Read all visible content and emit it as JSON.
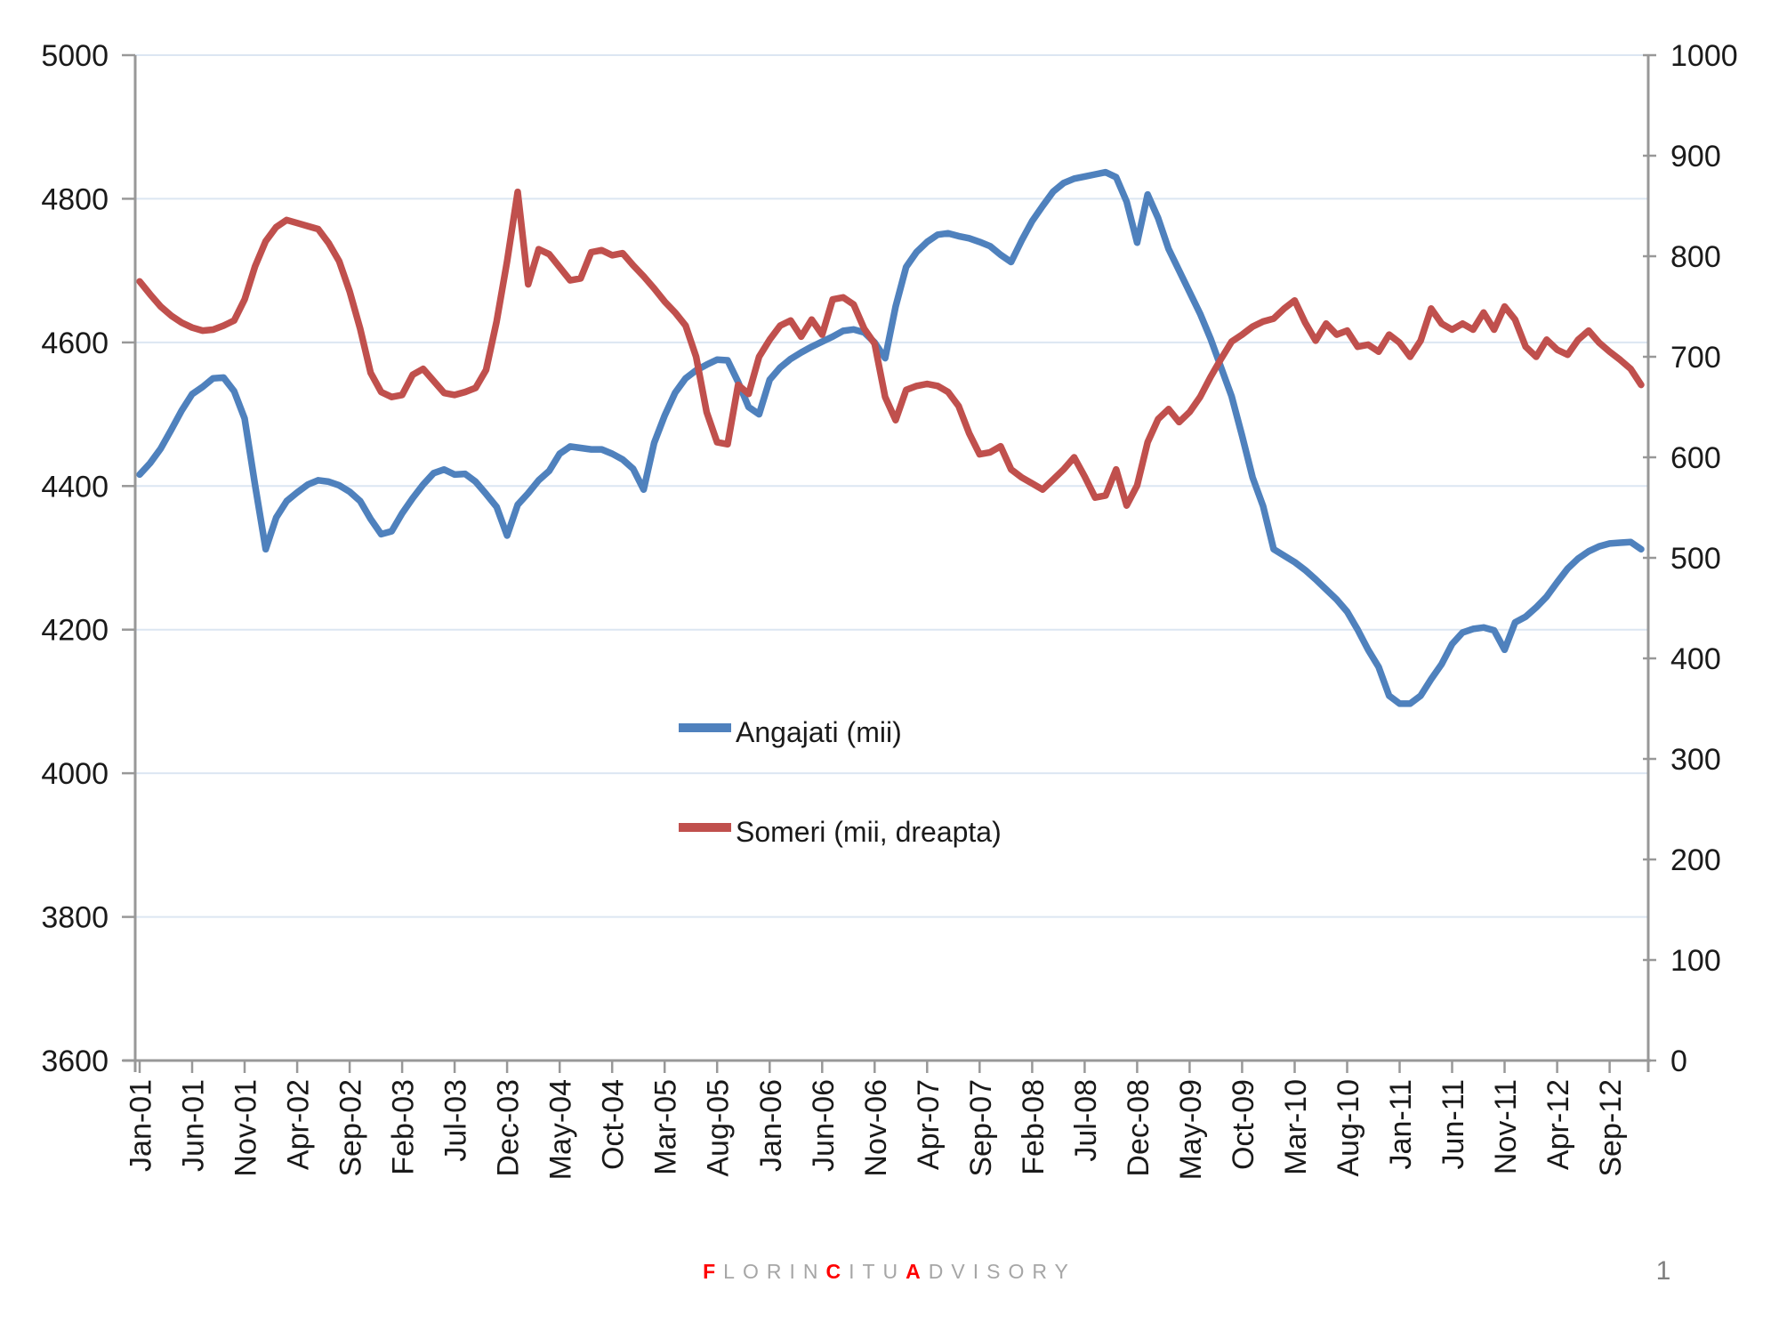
{
  "chart_data": {
    "type": "line",
    "title": "",
    "x_start": "Jan-01",
    "x_end": "Dec-12",
    "frequency": "monthly",
    "x_tick_labels": [
      "Jan-01",
      "Jun-01",
      "Nov-01",
      "Apr-02",
      "Sep-02",
      "Feb-03",
      "Jul-03",
      "Dec-03",
      "May-04",
      "Oct-04",
      "Mar-05",
      "Aug-05",
      "Jan-06",
      "Jun-06",
      "Nov-06",
      "Apr-07",
      "Sep-07",
      "Feb-08",
      "Jul-08",
      "Dec-08",
      "May-09",
      "Oct-09",
      "Mar-10",
      "Aug-10",
      "Jan-11",
      "Jun-11",
      "Nov-11",
      "Apr-12",
      "Sep-12"
    ],
    "x_tick_step_months": 5,
    "left_axis": {
      "min": 3600,
      "max": 5000,
      "step": 200,
      "tick_labels": [
        "3600",
        "3800",
        "4000",
        "4200",
        "4400",
        "4600",
        "4800",
        "5000"
      ]
    },
    "right_axis": {
      "min": 0,
      "max": 1000,
      "step": 100,
      "tick_labels": [
        "0",
        "100",
        "200",
        "300",
        "400",
        "500",
        "600",
        "700",
        "800",
        "900",
        "1000"
      ]
    },
    "grid": "horizontal-only",
    "legend_position": "center-inside",
    "colors": {
      "gridline": "#dce6f2",
      "axis": "#989898",
      "tick_text": "#1a1a1a"
    },
    "series": [
      {
        "name": "Angajati (mii)",
        "axis": "left",
        "color": "#4F81BD",
        "values": [
          4416,
          4432,
          4452,
          4478,
          4505,
          4528,
          4538,
          4550,
          4551,
          4532,
          4494,
          4401,
          4312,
          4356,
          4379,
          4391,
          4402,
          4408,
          4406,
          4401,
          4392,
          4379,
          4354,
          4333,
          4337,
          4362,
          4383,
          4402,
          4418,
          4423,
          4416,
          4417,
          4406,
          4389,
          4371,
          4331,
          4374,
          4390,
          4408,
          4421,
          4445,
          4455,
          4453,
          4451,
          4451,
          4445,
          4437,
          4424,
          4395,
          4460,
          4498,
          4530,
          4550,
          4561,
          4569,
          4576,
          4575,
          4545,
          4510,
          4500,
          4548,
          4565,
          4577,
          4586,
          4594,
          4601,
          4608,
          4616,
          4618,
          4614,
          4600,
          4578,
          4650,
          4705,
          4726,
          4740,
          4750,
          4752,
          4748,
          4745,
          4740,
          4734,
          4722,
          4712,
          4742,
          4769,
          4790,
          4810,
          4822,
          4828,
          4831,
          4834,
          4837,
          4830,
          4796,
          4739,
          4806,
          4773,
          4730,
          4700,
          4670,
          4640,
          4605,
          4565,
          4525,
          4470,
          4412,
          4372,
          4312,
          4303,
          4294,
          4283,
          4270,
          4256,
          4242,
          4225,
          4200,
          4172,
          4148,
          4108,
          4097,
          4097,
          4108,
          4131,
          4152,
          4180,
          4196,
          4201,
          4203,
          4199,
          4172,
          4210,
          4218,
          4231,
          4246,
          4266,
          4285,
          4299,
          4309,
          4316,
          4320,
          4321,
          4322,
          4312
        ]
      },
      {
        "name": "Someri (mii, dreapta)",
        "axis": "right",
        "color": "#C0504D",
        "values": [
          775,
          762,
          750,
          741,
          734,
          729,
          726,
          727,
          731,
          736,
          757,
          790,
          815,
          829,
          836,
          833,
          830,
          827,
          813,
          795,
          765,
          728,
          684,
          665,
          660,
          662,
          682,
          688,
          676,
          664,
          662,
          665,
          669,
          687,
          735,
          795,
          864,
          772,
          807,
          802,
          789,
          776,
          778,
          804,
          806,
          801,
          803,
          791,
          780,
          768,
          755,
          744,
          731,
          700,
          645,
          615,
          613,
          672,
          663,
          700,
          717,
          731,
          736,
          720,
          737,
          722,
          757,
          759,
          752,
          728,
          713,
          660,
          637,
          667,
          671,
          673,
          671,
          665,
          651,
          624,
          603,
          605,
          611,
          588,
          580,
          574,
          568,
          578,
          588,
          600,
          581,
          560,
          562,
          588,
          552,
          572,
          615,
          638,
          648,
          635,
          645,
          660,
          680,
          698,
          715,
          722,
          730,
          735,
          738,
          748,
          756,
          734,
          716,
          733,
          722,
          726,
          710,
          712,
          705,
          722,
          714,
          700,
          716,
          748,
          733,
          727,
          733,
          727,
          744,
          727,
          750,
          737,
          710,
          700,
          717,
          707,
          702,
          717,
          726,
          714,
          705,
          697,
          688,
          672
        ]
      }
    ]
  },
  "legend": {
    "angajati_label": "Angajati (mii)",
    "someri_label": "Someri (mii, dreapta)"
  },
  "footer": {
    "f1": "F",
    "t1": "LORIN",
    "f2": "C",
    "t2": "ITU",
    "f3": "A",
    "t3": "DVISORY",
    "page_number": "1"
  }
}
